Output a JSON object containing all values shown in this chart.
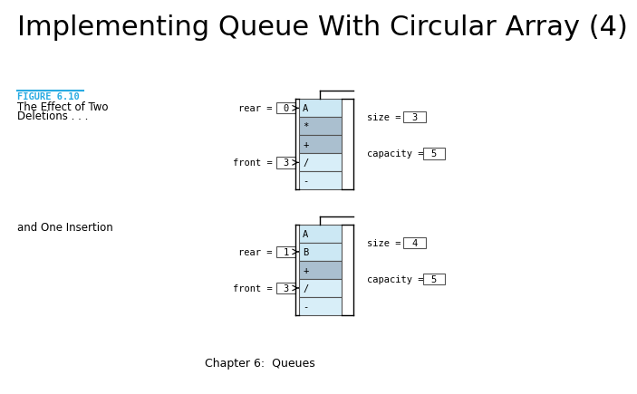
{
  "title": "Implementing Queue With Circular Array (4)",
  "subtitle": "Chapter 6:  Queues",
  "title_fontsize": 22,
  "subtitle_fontsize": 9,
  "bg_color": "#ffffff",
  "figure_label": "FIGURE 6.10",
  "figure_label_color": "#29abe2",
  "figure_desc1": "The Effect of Two",
  "figure_desc2": "Deletions . . .",
  "figure_desc_fontsize": 8.5,
  "second_label": "and One Insertion",
  "diagram1": {
    "rear_val": "0",
    "front_val": "3",
    "size_val": "3",
    "capacity_val": "5",
    "cells": [
      "A",
      "*",
      "+",
      "/",
      "-"
    ],
    "cell_colors": [
      "#cce8f4",
      "#aabfcf",
      "#aabfcf",
      "#d8eef8",
      "#d8eef8"
    ],
    "rear_arrow_row": 0,
    "front_arrow_row": 3
  },
  "diagram2": {
    "rear_val": "1",
    "front_val": "3",
    "size_val": "4",
    "capacity_val": "5",
    "cells": [
      "A",
      "B",
      "+",
      "/",
      "-"
    ],
    "cell_colors": [
      "#cce8f4",
      "#cce8f4",
      "#aabfcf",
      "#d8eef8",
      "#d8eef8"
    ],
    "rear_arrow_row": 1,
    "front_arrow_row": 3
  },
  "mono_font": "monospace",
  "label_fontsize": 7.5
}
